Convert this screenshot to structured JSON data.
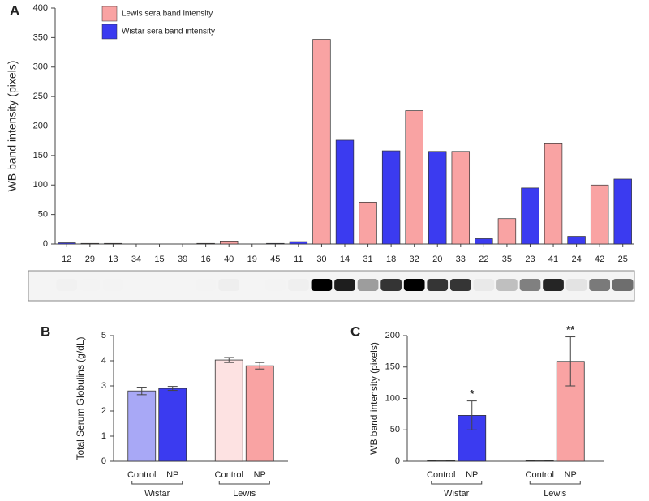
{
  "chart_data": [
    {
      "type": "bar",
      "panel": "A",
      "y_label": "WB band intensity (pixels)",
      "categories": [
        "12",
        "29",
        "13",
        "34",
        "15",
        "39",
        "16",
        "40",
        "19",
        "45",
        "11",
        "30",
        "14",
        "31",
        "18",
        "32",
        "20",
        "33",
        "22",
        "35",
        "23",
        "41",
        "24",
        "42",
        "25"
      ],
      "series": [
        {
          "name": "Lewis sera band intensity",
          "color": "#f9a3a3",
          "values": [
            null,
            1,
            1,
            null,
            0,
            null,
            1,
            5,
            null,
            null,
            null,
            347,
            null,
            71,
            null,
            226,
            null,
            157,
            null,
            43,
            null,
            170,
            null,
            100,
            null
          ]
        },
        {
          "name": "Wistar sera band intensity",
          "color": "#3b3bf0",
          "values": [
            2,
            null,
            null,
            0,
            null,
            0,
            null,
            null,
            0,
            1,
            4,
            null,
            176,
            null,
            158,
            null,
            157,
            null,
            9,
            null,
            95,
            null,
            13,
            null,
            110
          ]
        }
      ],
      "ylim": [
        0,
        400
      ],
      "yticks": [
        0,
        50,
        100,
        150,
        200,
        250,
        300,
        350,
        400
      ],
      "legend": "upper left"
    },
    {
      "type": "bar",
      "panel": "B",
      "y_label": "Total Serum Globulins (g/dL)",
      "categories": [
        "Control",
        "NP",
        "Control",
        "NP"
      ],
      "groups": [
        "Wistar",
        "Lewis"
      ],
      "values": [
        2.8,
        2.9,
        4.03,
        3.8
      ],
      "errors": [
        0.15,
        0.08,
        0.1,
        0.13
      ],
      "colors": [
        "#a8a8f6",
        "#3b3bf0",
        "#fde2e2",
        "#f9a3a3"
      ],
      "ylim": [
        0,
        5
      ],
      "yticks": [
        0,
        1,
        2,
        3,
        4,
        5
      ]
    },
    {
      "type": "bar",
      "panel": "C",
      "y_label": "WB band intensity (pixels)",
      "categories": [
        "Control",
        "NP",
        "Control",
        "NP"
      ],
      "groups": [
        "Wistar",
        "Lewis"
      ],
      "values": [
        1,
        73,
        1,
        159
      ],
      "errors": [
        0.5,
        23,
        0.5,
        39
      ],
      "annotations": [
        null,
        "*",
        null,
        "**"
      ],
      "colors": [
        "#a8a8f6",
        "#3b3bf0",
        "#fde2e2",
        "#f9a3a3"
      ],
      "ylim": [
        0,
        200
      ],
      "yticks": [
        0,
        50,
        100,
        150,
        200
      ]
    }
  ]
}
